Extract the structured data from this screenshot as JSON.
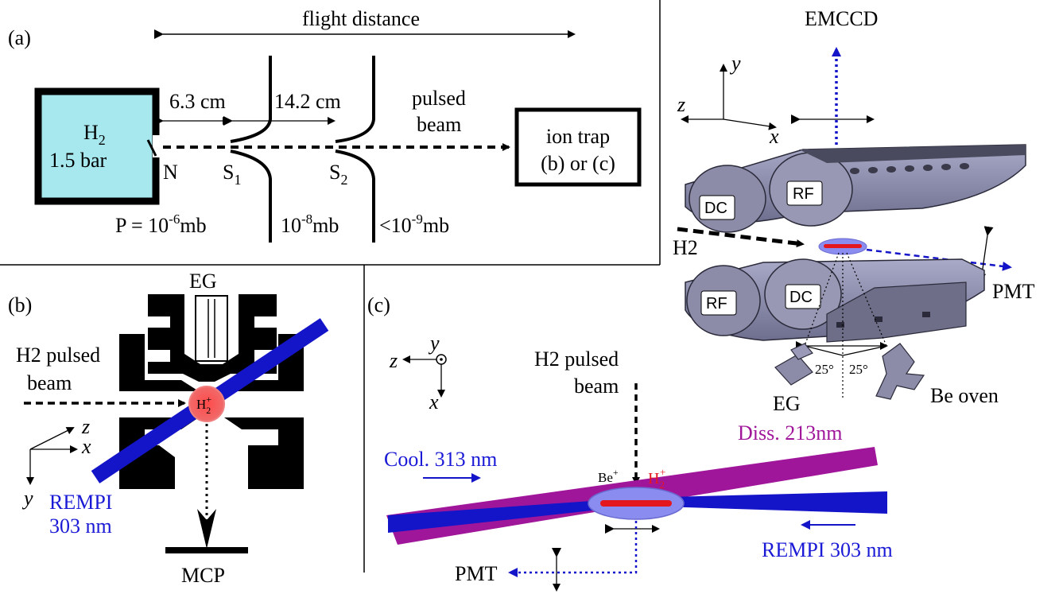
{
  "panel_a": {
    "label": "(a)",
    "flight_distance": "flight distance",
    "source_gas": "H",
    "source_gas_sub": "2",
    "source_pressure": "1.5 bar",
    "nozzle": "N",
    "skimmer1": "S",
    "skimmer1_sub": "1",
    "skimmer2": "S",
    "skimmer2_sub": "2",
    "dist1": "6.3 cm",
    "dist2": "14.2 cm",
    "pulsed": "pulsed",
    "beam": "beam",
    "trap_line1": "ion trap",
    "trap_line2": "(b) or (c)",
    "p1_prefix": "P = 10",
    "p1_exp": "-6",
    "p1_unit": "mb",
    "p2_prefix": "10",
    "p2_exp": "-8",
    "p2_unit": "mb",
    "p3_prefix": "<10",
    "p3_exp": "-9",
    "p3_unit": "mb"
  },
  "panel_b": {
    "label": "(b)",
    "eg": "EG",
    "h2_pulsed": "H2 pulsed",
    "beam": "beam",
    "ion": "H",
    "ion_sub": "2",
    "ion_sup": "+",
    "ax_z": "z",
    "ax_x": "x",
    "ax_y": "y",
    "rempi1": "REMPI",
    "rempi2": "303 nm",
    "mcp": "MCP"
  },
  "panel_c": {
    "label": "(c)",
    "ax_y": "y",
    "ax_z": "z",
    "ax_x": "x",
    "h2_pulsed": "H2 pulsed",
    "beam": "beam",
    "diss": "Diss. 213nm",
    "cool": "Cool. 313 nm",
    "be": "Be",
    "be_sup": "+",
    "h2": "H",
    "h2_sub": "2",
    "h2_sup": "+",
    "rempi": "REMPI 303 nm",
    "pmt": "PMT"
  },
  "panel_3d": {
    "emccd": "EMCCD",
    "ax_y": "y",
    "ax_z": "z",
    "ax_x": "x",
    "dc_top": "DC",
    "rf_top": "RF",
    "h2": "H2",
    "rf_bot": "RF",
    "dc_bot": "DC",
    "pmt": "PMT",
    "angle1": "25°",
    "angle2": "25°",
    "eg": "EG",
    "be_oven": "Be oven"
  },
  "colors": {
    "chamber": "#a7e8ef",
    "blue_laser": "#1414c8",
    "magenta_laser": "#a0169a",
    "ion_red": "#f03a3a",
    "electrode_gray": "#8c8ca8"
  }
}
